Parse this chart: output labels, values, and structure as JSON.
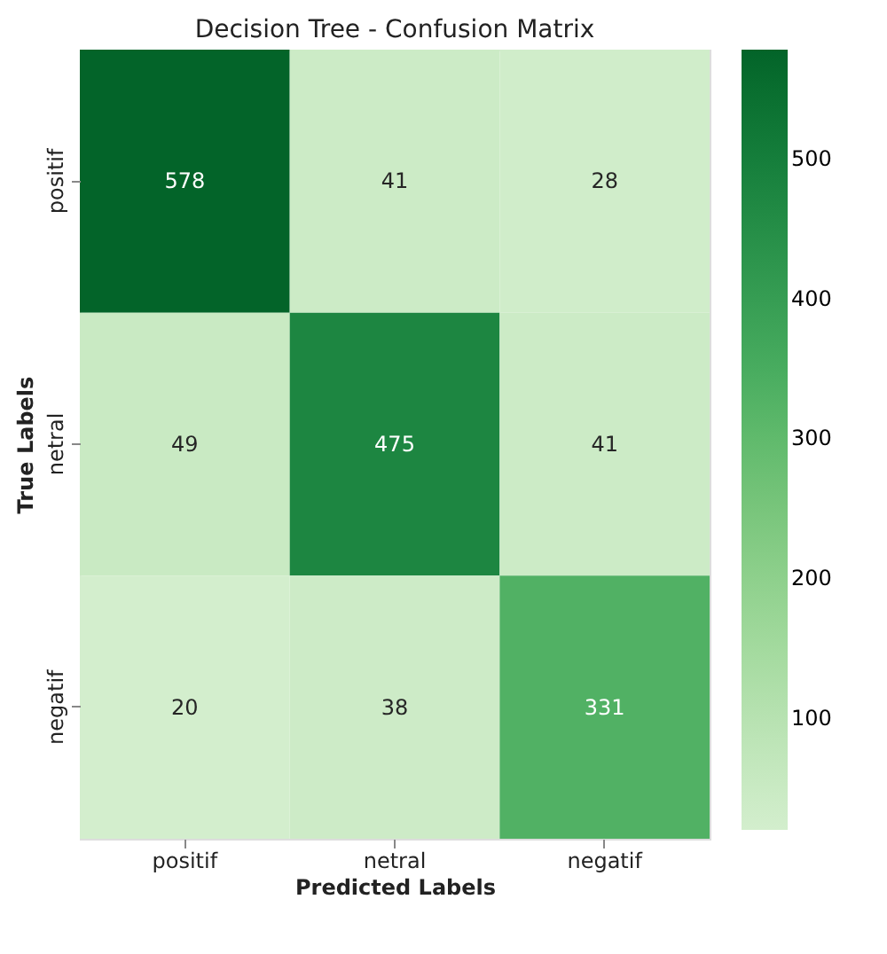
{
  "chart_data": {
    "type": "heatmap",
    "title": "Decision Tree - Confusion Matrix",
    "xlabel": "Predicted Labels",
    "ylabel": "True Labels",
    "categories": [
      "positif",
      "netral",
      "negatif"
    ],
    "y_categories": [
      "positif",
      "netral",
      "negatif"
    ],
    "cells": [
      [
        578,
        41,
        28
      ],
      [
        49,
        475,
        41
      ],
      [
        20,
        38,
        331
      ]
    ],
    "data_labels": true,
    "clim": [
      20,
      578
    ],
    "cticks": [
      100,
      200,
      300,
      400,
      500
    ]
  }
}
